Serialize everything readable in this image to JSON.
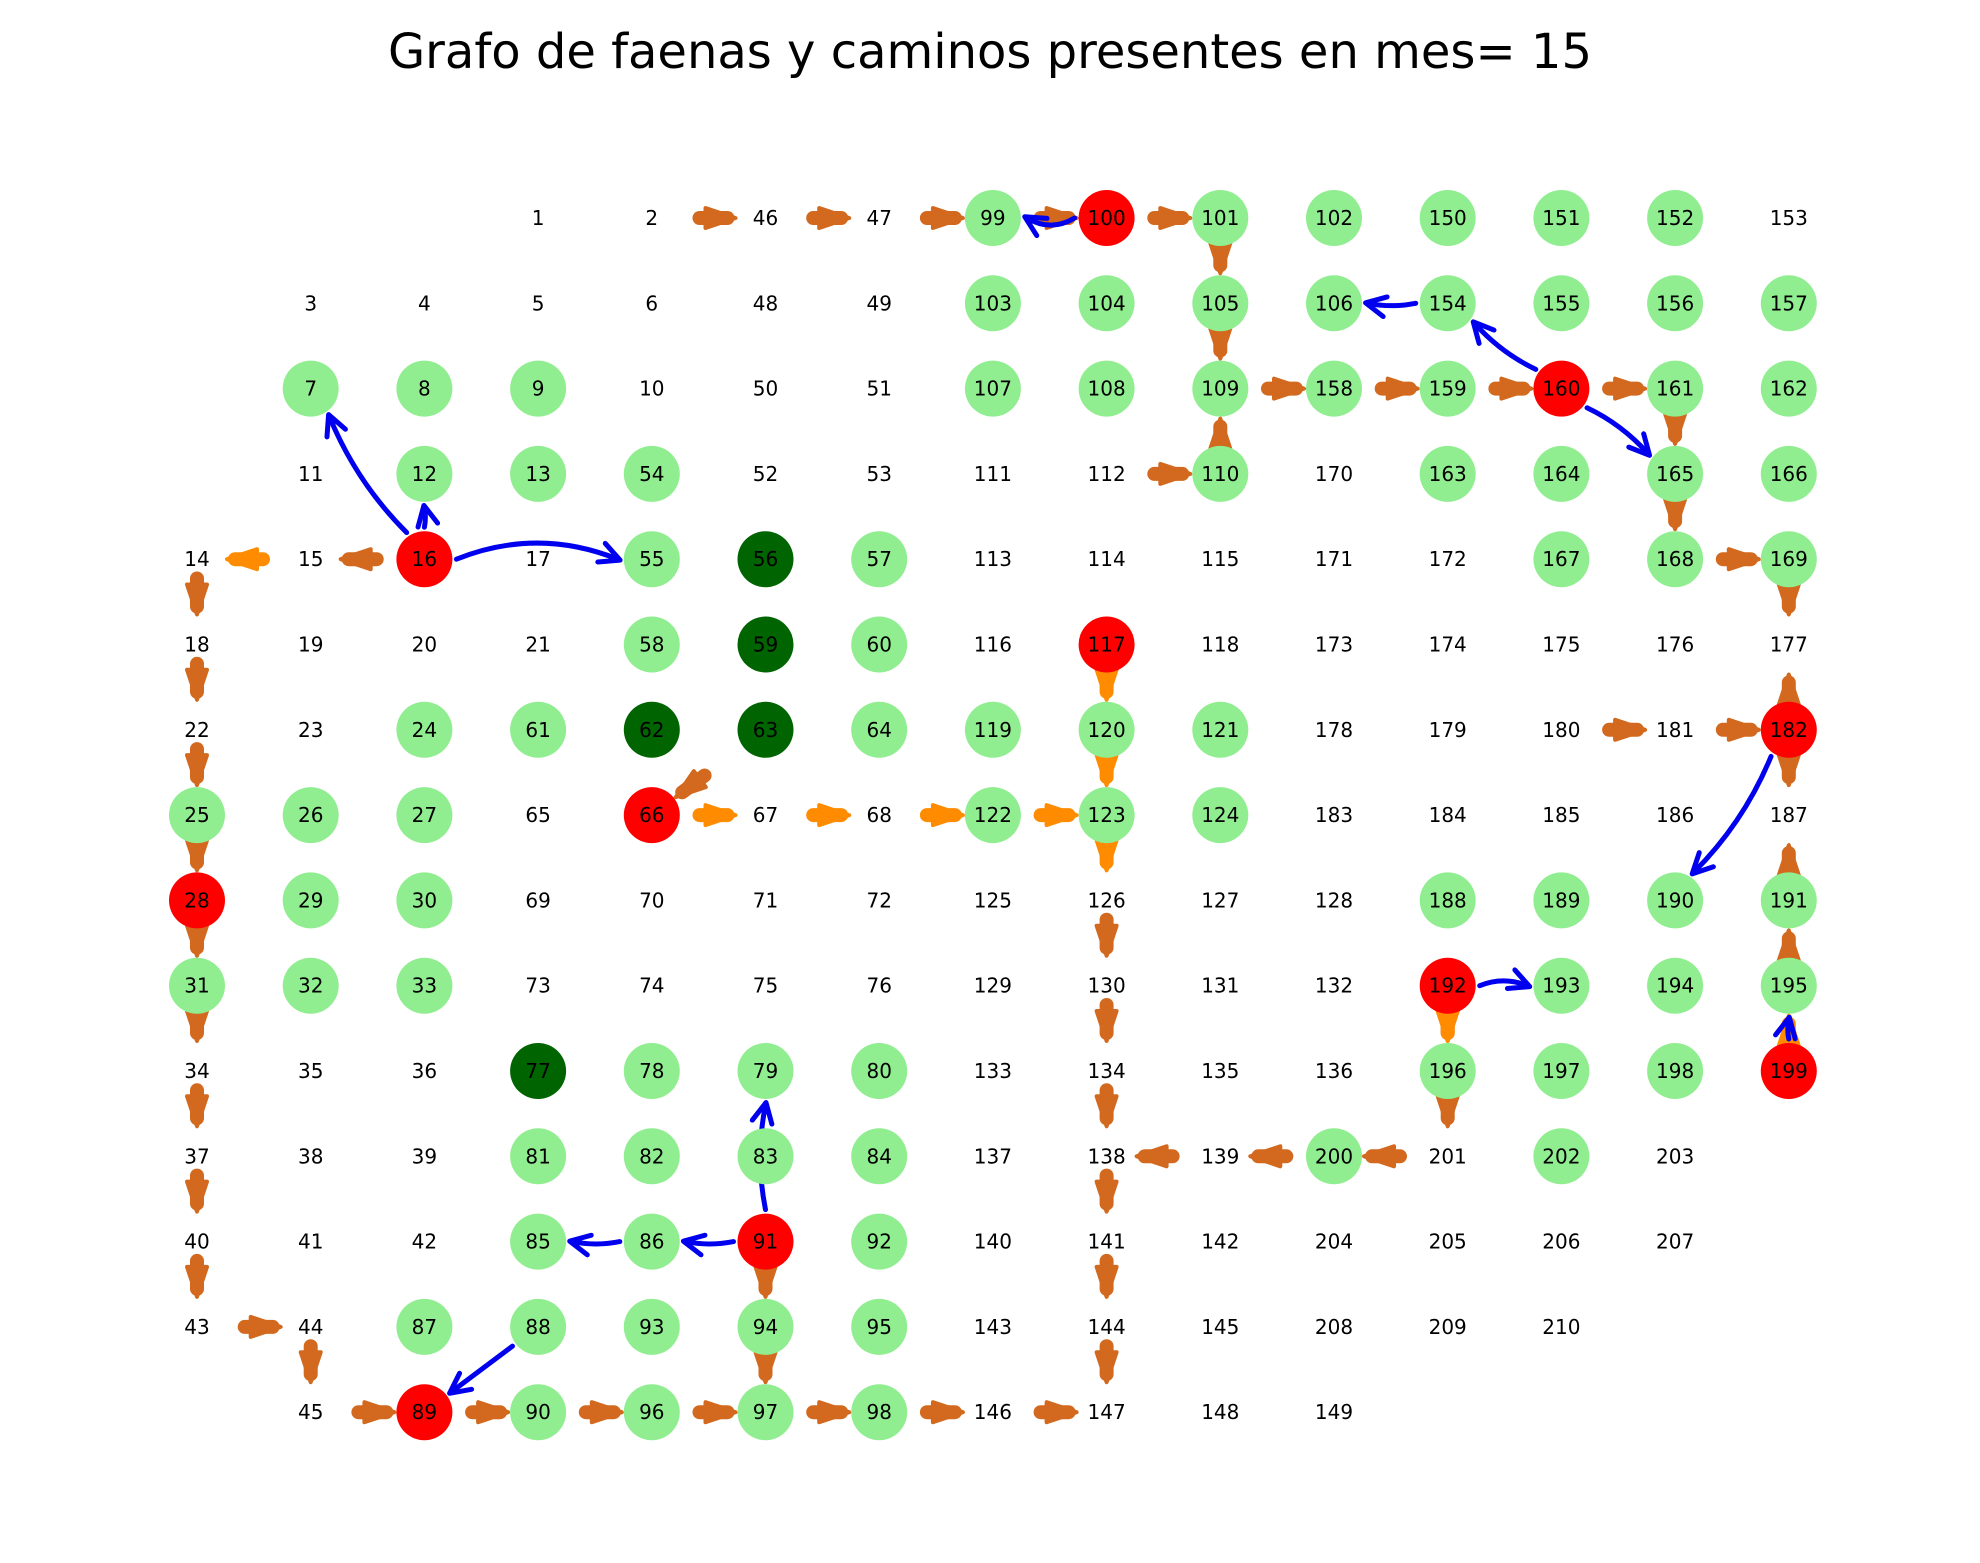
{
  "title": "Grafo de faenas y caminos presentes en mes= 15",
  "colors": {
    "light": "#90ee90",
    "dark": "#006400",
    "red": "#ff0000",
    "blue": "#0000ee",
    "brown": "#d2691e",
    "orange": "#ff8c00"
  },
  "rows": [
    [
      null,
      null,
      null,
      "1",
      "2",
      "46",
      "47",
      "99",
      "100",
      "101",
      "102",
      "150",
      "151",
      "152",
      "153"
    ],
    [
      null,
      "3",
      "4",
      "5",
      "6",
      "48",
      "49",
      "103",
      "104",
      "105",
      "106",
      "154",
      "155",
      "156",
      "157"
    ],
    [
      null,
      "7",
      "8",
      "9",
      "10",
      "50",
      "51",
      "107",
      "108",
      "109",
      "158",
      "159",
      "160",
      "161",
      "162"
    ],
    [
      null,
      "11",
      "12",
      "13",
      "54",
      "52",
      "53",
      "111",
      "112",
      "110",
      "170",
      "163",
      "164",
      "165",
      "166"
    ],
    [
      "14",
      "15",
      "16",
      "17",
      "55",
      "56",
      "57",
      "113",
      "114",
      "115",
      "171",
      "172",
      "167",
      "168",
      "169"
    ],
    [
      "18",
      "19",
      "20",
      "21",
      "58",
      "59",
      "60",
      "116",
      "117",
      "118",
      "173",
      "174",
      "175",
      "176",
      "177"
    ],
    [
      "22",
      "23",
      "24",
      "61",
      "62",
      "63",
      "64",
      "119",
      "120",
      "121",
      "178",
      "179",
      "180",
      "181",
      "182"
    ],
    [
      "25",
      "26",
      "27",
      "65",
      "66",
      "67",
      "68",
      "122",
      "123",
      "124",
      "183",
      "184",
      "185",
      "186",
      "187"
    ],
    [
      "28",
      "29",
      "30",
      "69",
      "70",
      "71",
      "72",
      "125",
      "126",
      "127",
      "128",
      "188",
      "189",
      "190",
      "191"
    ],
    [
      "31",
      "32",
      "33",
      "73",
      "74",
      "75",
      "76",
      "129",
      "130",
      "131",
      "132",
      "192",
      "193",
      "194",
      "195"
    ],
    [
      "34",
      "35",
      "36",
      "77",
      "78",
      "79",
      "80",
      "133",
      "134",
      "135",
      "136",
      "196",
      "197",
      "198",
      "199"
    ],
    [
      "37",
      "38",
      "39",
      "81",
      "82",
      "83",
      "84",
      "137",
      "138",
      "139",
      "200",
      "201",
      "202",
      "203",
      null
    ],
    [
      "40",
      "41",
      "42",
      "85",
      "86",
      "91",
      "92",
      "140",
      "141",
      "142",
      "204",
      "205",
      "206",
      "207",
      null
    ],
    [
      "43",
      "44",
      "87",
      "88",
      "93",
      "94",
      "95",
      "143",
      "144",
      "145",
      "208",
      "209",
      "210",
      null,
      null
    ],
    [
      null,
      "45",
      "89",
      "90",
      "96",
      "97",
      "98",
      "146",
      "147",
      "148",
      "149",
      null,
      null,
      null,
      null
    ]
  ],
  "node_status": {
    "light": [
      "99",
      "101",
      "102",
      "150",
      "151",
      "152",
      "103",
      "104",
      "105",
      "106",
      "154",
      "155",
      "156",
      "157",
      "7",
      "8",
      "9",
      "107",
      "108",
      "109",
      "158",
      "159",
      "161",
      "162",
      "12",
      "13",
      "54",
      "110",
      "163",
      "164",
      "165",
      "166",
      "55",
      "57",
      "167",
      "168",
      "169",
      "58",
      "60",
      "24",
      "61",
      "64",
      "119",
      "120",
      "121",
      "25",
      "26",
      "27",
      "122",
      "123",
      "124",
      "29",
      "30",
      "188",
      "189",
      "190",
      "191",
      "31",
      "32",
      "33",
      "193",
      "194",
      "195",
      "78",
      "79",
      "80",
      "196",
      "197",
      "198",
      "81",
      "82",
      "83",
      "84",
      "200",
      "202",
      "85",
      "86",
      "92",
      "87",
      "88",
      "93",
      "94",
      "95",
      "90",
      "96",
      "97",
      "98"
    ],
    "dark": [
      "56",
      "59",
      "62",
      "63",
      "77"
    ],
    "red": [
      "100",
      "160",
      "16",
      "117",
      "182",
      "66",
      "28",
      "192",
      "199",
      "91",
      "89"
    ]
  },
  "roads_brown": [
    [
      "2",
      "46"
    ],
    [
      "46",
      "47"
    ],
    [
      "47",
      "99"
    ],
    [
      "99",
      "100"
    ],
    [
      "100",
      "101"
    ],
    [
      "101",
      "105"
    ],
    [
      "105",
      "109"
    ],
    [
      "109",
      "158"
    ],
    [
      "158",
      "159"
    ],
    [
      "159",
      "160"
    ],
    [
      "160",
      "161"
    ],
    [
      "110",
      "109"
    ],
    [
      "112",
      "110"
    ],
    [
      "161",
      "165"
    ],
    [
      "165",
      "168"
    ],
    [
      "168",
      "169"
    ],
    [
      "169",
      "177"
    ],
    [
      "182",
      "177"
    ],
    [
      "180",
      "181"
    ],
    [
      "181",
      "182"
    ],
    [
      "182",
      "187"
    ],
    [
      "191",
      "187"
    ],
    [
      "195",
      "191"
    ],
    [
      "16",
      "15"
    ],
    [
      "14",
      "18"
    ],
    [
      "18",
      "22"
    ],
    [
      "22",
      "25"
    ],
    [
      "25",
      "28"
    ],
    [
      "28",
      "31"
    ],
    [
      "31",
      "34"
    ],
    [
      "34",
      "37"
    ],
    [
      "37",
      "40"
    ],
    [
      "40",
      "43"
    ],
    [
      "43",
      "44"
    ],
    [
      "44",
      "45"
    ],
    [
      "45",
      "89"
    ],
    [
      "89",
      "90"
    ],
    [
      "90",
      "96"
    ],
    [
      "96",
      "97"
    ],
    [
      "97",
      "98"
    ],
    [
      "98",
      "146"
    ],
    [
      "146",
      "147"
    ],
    [
      "144",
      "147"
    ],
    [
      "141",
      "144"
    ],
    [
      "138",
      "141"
    ],
    [
      "134",
      "138"
    ],
    [
      "130",
      "134"
    ],
    [
      "126",
      "130"
    ],
    [
      "139",
      "138"
    ],
    [
      "200",
      "139"
    ],
    [
      "201",
      "200"
    ],
    [
      "192",
      "196"
    ],
    [
      "196",
      "201"
    ],
    [
      "63",
      "66"
    ],
    [
      "91",
      "94"
    ],
    [
      "94",
      "97"
    ]
  ],
  "roads_orange": [
    [
      "15",
      "14"
    ],
    [
      "66",
      "67"
    ],
    [
      "67",
      "68"
    ],
    [
      "68",
      "122"
    ],
    [
      "122",
      "123"
    ],
    [
      "117",
      "120"
    ],
    [
      "120",
      "123"
    ],
    [
      "123",
      "126"
    ],
    [
      "199",
      "195"
    ],
    [
      "192",
      "196"
    ]
  ],
  "arrows_blue": [
    [
      "100",
      "99",
      0.3
    ],
    [
      "16",
      "7",
      0.1
    ],
    [
      "16",
      "12",
      -0.1
    ],
    [
      "16",
      "55",
      0.2
    ],
    [
      "160",
      "154",
      0.1
    ],
    [
      "154",
      "106",
      0.1
    ],
    [
      "160",
      "165",
      0.1
    ],
    [
      "182",
      "190",
      0.1
    ],
    [
      "192",
      "193",
      0.2
    ],
    [
      "199",
      "195",
      0.1
    ],
    [
      "91",
      "86",
      0.1
    ],
    [
      "86",
      "85",
      0.1
    ],
    [
      "91",
      "79",
      0.1
    ],
    [
      "88",
      "89",
      0.0
    ]
  ]
}
